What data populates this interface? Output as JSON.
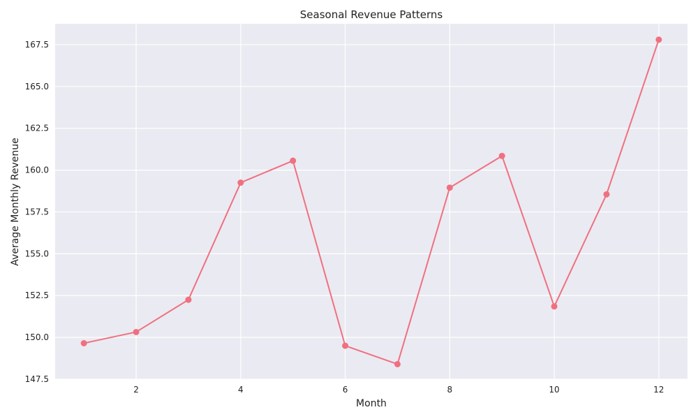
{
  "chart_data": {
    "type": "line",
    "title": "Seasonal Revenue Patterns",
    "xlabel": "Month",
    "ylabel": "Average Monthly Revenue",
    "xlim": [
      0.45,
      12.55
    ],
    "ylim": [
      147.5,
      168.75
    ],
    "xticks": [
      2,
      4,
      6,
      8,
      10,
      12
    ],
    "xtick_labels": [
      "2",
      "4",
      "6",
      "8",
      "10",
      "12"
    ],
    "yticks": [
      147.5,
      150.0,
      152.5,
      155.0,
      157.5,
      160.0,
      162.5,
      165.0,
      167.5
    ],
    "ytick_labels": [
      "147.5",
      "150.0",
      "152.5",
      "155.0",
      "157.5",
      "160.0",
      "162.5",
      "165.0",
      "167.5"
    ],
    "grid": true,
    "series": [
      {
        "x": [
          1,
          2,
          3,
          4,
          5,
          6,
          7,
          8,
          9,
          10,
          11,
          12
        ],
        "y": [
          149.65,
          150.32,
          152.25,
          159.25,
          160.56,
          149.5,
          148.4,
          158.95,
          160.85,
          151.85,
          158.55,
          167.8
        ],
        "color": "#f0707f",
        "marker": "circle"
      }
    ]
  },
  "colors": {
    "plot_background": "#eaeaf2",
    "grid": "#ffffff",
    "line": "#f0707f"
  }
}
